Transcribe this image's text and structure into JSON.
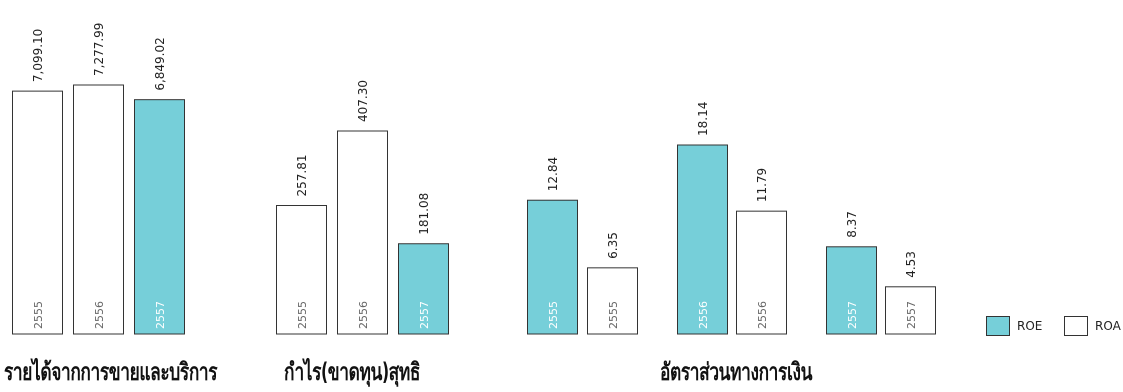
{
  "colors": {
    "roe": "#76cfd9",
    "roa": "#ffffff",
    "stroke": "#333333"
  },
  "legend": {
    "roe": "ROE",
    "roa": "ROA"
  },
  "chart_data": [
    {
      "type": "bar",
      "title": "รายได้จากการขายและบริการ",
      "categories": [
        "2555",
        "2556",
        "2557"
      ],
      "values": [
        7099.1,
        7277.99,
        6849.02
      ],
      "value_labels": [
        "7,099.10",
        "7,277.99",
        "6,849.02"
      ],
      "highlight": [
        false,
        false,
        true
      ]
    },
    {
      "type": "bar",
      "title": "กำไร(ขาดทุน)สุทธิ",
      "categories": [
        "2555",
        "2556",
        "2557"
      ],
      "values": [
        257.81,
        407.3,
        181.08
      ],
      "value_labels": [
        "257.81",
        "407.30",
        "181.08"
      ],
      "highlight": [
        false,
        false,
        true
      ]
    },
    {
      "type": "bar",
      "title": "อัตราส่วนทางการเงิน",
      "categories": [
        "2555",
        "2555",
        "2556",
        "2556",
        "2557",
        "2557"
      ],
      "series_of_bar": [
        "ROE",
        "ROA",
        "ROE",
        "ROA",
        "ROE",
        "ROA"
      ],
      "values": [
        12.84,
        6.35,
        18.14,
        11.79,
        8.37,
        4.53
      ],
      "value_labels": [
        "12.84",
        "6.35",
        "18.14",
        "11.79",
        "8.37",
        "4.53"
      ],
      "highlight": [
        true,
        false,
        true,
        false,
        true,
        false
      ]
    }
  ]
}
